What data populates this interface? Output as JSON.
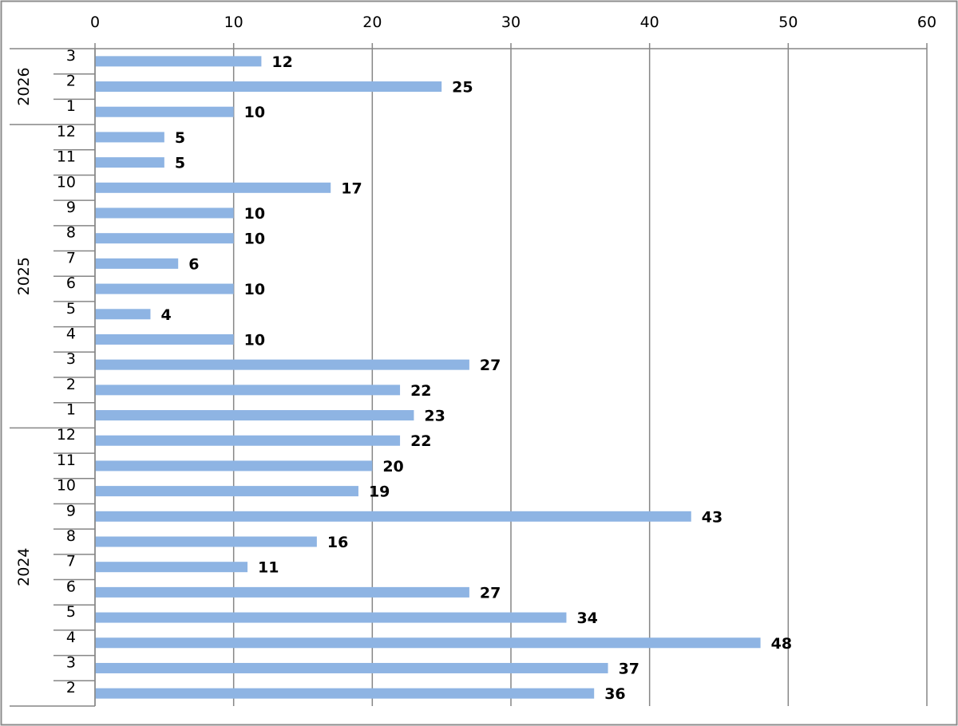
{
  "chart_data": {
    "type": "bar",
    "orientation": "horizontal",
    "title": "",
    "xlabel": "",
    "ylabel": "",
    "xlim": [
      0,
      60
    ],
    "x_ticks": [
      0,
      10,
      20,
      30,
      40,
      50,
      60
    ],
    "x_axis_position": "top",
    "grid": true,
    "legend": "none",
    "bar_color": "#8EB4E3",
    "groups": [
      {
        "year": "2026",
        "categories": [
          "3",
          "2",
          "1"
        ],
        "values": [
          12,
          25,
          10
        ]
      },
      {
        "year": "2025",
        "categories": [
          "12",
          "11",
          "10",
          "9",
          "8",
          "7",
          "6",
          "5",
          "4",
          "3",
          "2",
          "1"
        ],
        "values": [
          5,
          5,
          17,
          10,
          10,
          6,
          10,
          4,
          10,
          27,
          22,
          23
        ]
      },
      {
        "year": "2024",
        "categories": [
          "12",
          "11",
          "10",
          "9",
          "8",
          "7",
          "6",
          "5",
          "4",
          "3",
          "2"
        ],
        "values": [
          22,
          20,
          19,
          43,
          16,
          11,
          27,
          34,
          48,
          37,
          36
        ]
      }
    ]
  }
}
